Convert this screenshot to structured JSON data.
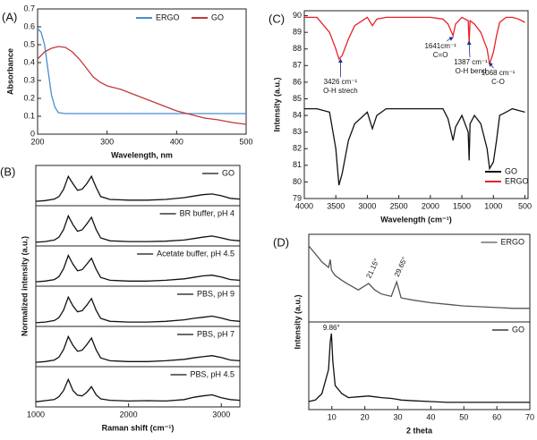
{
  "chart_data": [
    {
      "type": "line",
      "label": "(A)",
      "xlabel": "Wavelength, nm",
      "ylabel": "Absorbance",
      "x": [
        200,
        205,
        210,
        215,
        220,
        225,
        230,
        240,
        250,
        260,
        270,
        280,
        290,
        300,
        320,
        340,
        360,
        380,
        400,
        420,
        440,
        460,
        480,
        500
      ],
      "xlim": [
        200,
        500
      ],
      "xticks": [
        200,
        300,
        400,
        500
      ],
      "ylim": [
        0,
        0.7
      ],
      "yticks": [
        0,
        0.1,
        0.2,
        0.3,
        0.4,
        0.5,
        0.6,
        0.7
      ],
      "legend": "upper right",
      "series": [
        {
          "name": "ERGO",
          "color": "#4a8ed0",
          "values": [
            0.59,
            0.57,
            0.5,
            0.36,
            0.22,
            0.15,
            0.12,
            0.115,
            0.115,
            0.115,
            0.115,
            0.115,
            0.115,
            0.115,
            0.115,
            0.115,
            0.115,
            0.115,
            0.115,
            0.115,
            0.115,
            0.115,
            0.115,
            0.115
          ]
        },
        {
          "name": "GO",
          "color": "#c0393b",
          "values": [
            0.42,
            0.44,
            0.46,
            0.47,
            0.48,
            0.485,
            0.49,
            0.485,
            0.46,
            0.42,
            0.37,
            0.32,
            0.29,
            0.27,
            0.25,
            0.22,
            0.19,
            0.16,
            0.13,
            0.11,
            0.09,
            0.08,
            0.065,
            0.055
          ]
        }
      ]
    },
    {
      "type": "line",
      "label": "(B)",
      "xlabel": "Raman shift (cm⁻¹)",
      "ylabel": "Normalized intensity (a.u.)",
      "stacked_panels": true,
      "x": [
        1000,
        1100,
        1200,
        1250,
        1300,
        1350,
        1400,
        1450,
        1500,
        1550,
        1600,
        1650,
        1700,
        1800,
        2000,
        2200,
        2400,
        2600,
        2700,
        2800,
        2900,
        3000,
        3100,
        3200
      ],
      "xlim": [
        1000,
        3200
      ],
      "xticks": [
        1000,
        2000,
        3000
      ],
      "ylim": [
        0,
        1
      ],
      "series": [
        {
          "name": "GO",
          "color": "#111111",
          "values": [
            0.12,
            0.14,
            0.18,
            0.25,
            0.45,
            0.8,
            0.6,
            0.42,
            0.45,
            0.6,
            0.8,
            0.5,
            0.25,
            0.17,
            0.15,
            0.15,
            0.17,
            0.22,
            0.26,
            0.3,
            0.32,
            0.27,
            0.2,
            0.18
          ]
        },
        {
          "name": "BR buffer, pH 4",
          "color": "#111111",
          "values": [
            0.1,
            0.12,
            0.16,
            0.24,
            0.45,
            0.82,
            0.58,
            0.4,
            0.44,
            0.6,
            0.78,
            0.45,
            0.22,
            0.14,
            0.12,
            0.12,
            0.13,
            0.16,
            0.2,
            0.24,
            0.27,
            0.22,
            0.16,
            0.14
          ]
        },
        {
          "name": "Acetate buffer, pH 4.5",
          "color": "#111111",
          "values": [
            0.12,
            0.14,
            0.18,
            0.26,
            0.48,
            0.84,
            0.6,
            0.42,
            0.45,
            0.6,
            0.76,
            0.46,
            0.24,
            0.16,
            0.14,
            0.14,
            0.16,
            0.2,
            0.24,
            0.28,
            0.3,
            0.25,
            0.18,
            0.16
          ]
        },
        {
          "name": "PBS, pH 9",
          "color": "#111111",
          "values": [
            0.1,
            0.12,
            0.16,
            0.24,
            0.45,
            0.8,
            0.56,
            0.4,
            0.43,
            0.58,
            0.76,
            0.44,
            0.22,
            0.14,
            0.12,
            0.12,
            0.14,
            0.18,
            0.22,
            0.25,
            0.28,
            0.23,
            0.16,
            0.14
          ]
        },
        {
          "name": "PBS, pH 7",
          "color": "#111111",
          "values": [
            0.12,
            0.14,
            0.18,
            0.26,
            0.47,
            0.82,
            0.58,
            0.42,
            0.45,
            0.6,
            0.78,
            0.46,
            0.24,
            0.16,
            0.14,
            0.14,
            0.16,
            0.2,
            0.24,
            0.27,
            0.3,
            0.25,
            0.18,
            0.16
          ]
        },
        {
          "name": "PBS, pH 4.5",
          "color": "#111111",
          "values": [
            0.14,
            0.17,
            0.2,
            0.28,
            0.45,
            0.75,
            0.45,
            0.32,
            0.3,
            0.4,
            0.55,
            0.33,
            0.22,
            0.18,
            0.16,
            0.17,
            0.16,
            0.2,
            0.26,
            0.3,
            0.33,
            0.25,
            0.2,
            0.18
          ]
        }
      ]
    },
    {
      "type": "line",
      "label": "(C)",
      "xlabel": "Wavelength (cm⁻¹)",
      "ylabel": "Intensity (a.u.)",
      "x": [
        4000,
        3800,
        3600,
        3500,
        3450,
        3400,
        3300,
        3200,
        3000,
        2920,
        2850,
        2700,
        2400,
        2000,
        1800,
        1720,
        1640,
        1600,
        1500,
        1400,
        1385,
        1370,
        1300,
        1200,
        1100,
        1060,
        1000,
        950,
        900,
        800,
        700,
        600,
        500
      ],
      "xlim": [
        4000,
        450
      ],
      "xticks": [
        4000,
        3500,
        3000,
        2500,
        2000,
        1500,
        1000,
        500
      ],
      "ylim": [
        79,
        90.3
      ],
      "yticks": [
        79,
        80,
        81,
        82,
        83,
        84,
        85,
        86,
        87,
        88,
        89,
        90
      ],
      "legend": "lower right",
      "arrows": true,
      "series": [
        {
          "name": "GO",
          "color": "#111111",
          "values": [
            84.4,
            84.4,
            84.2,
            82,
            79.8,
            80.5,
            82.5,
            83.5,
            84.2,
            83.2,
            84,
            84.4,
            84.4,
            84.4,
            84.4,
            83.8,
            82.5,
            83.3,
            84,
            83,
            81.3,
            83.5,
            84,
            83.5,
            82,
            80.8,
            81.2,
            82.5,
            84,
            84.2,
            84.4,
            84.3,
            84.2
          ]
        },
        {
          "name": "ERGO",
          "color": "#e8202a",
          "values": [
            89.9,
            89.9,
            89,
            88,
            87.4,
            87.6,
            88.6,
            89.4,
            89.9,
            89.4,
            89.8,
            89.9,
            89.9,
            89.9,
            89.8,
            89.5,
            88.8,
            89.5,
            89.9,
            89.7,
            88.4,
            89.7,
            89.5,
            89,
            88,
            87.1,
            87.8,
            88.8,
            89.6,
            89.9,
            89.9,
            89.8,
            89.6
          ]
        }
      ],
      "annotations": [
        {
          "text": "3426 cm⁻¹",
          "note": "O-H strech",
          "x": 3426,
          "series": 1,
          "color": "#1f2a8a",
          "note_color": "#2e8b2e"
        },
        {
          "text": "1641cm⁻¹",
          "note": "C=O",
          "x": 1641,
          "series": 1,
          "color": "#1f2a8a",
          "note_color": "#2e8b2e"
        },
        {
          "text": "1387 cm⁻¹",
          "note": "O-H bend",
          "x": 1387,
          "series": 1,
          "color": "#1f2a8a",
          "note_color": "#2e8b2e"
        },
        {
          "text": "1068 cm⁻¹",
          "note": "C-O",
          "x": 1068,
          "series": 1,
          "color": "#1f2a8a",
          "note_color": "#2e8b2e"
        }
      ]
    },
    {
      "type": "line",
      "label": "(D)",
      "xlabel": "2 theta",
      "ylabel": "Intensity (a.u.)",
      "stacked_panels": true,
      "x": [
        3,
        5,
        7,
        9,
        9.5,
        9.86,
        10.3,
        11,
        13,
        15,
        18,
        21.15,
        23,
        25,
        28,
        29.65,
        31,
        35,
        40,
        45,
        50,
        55,
        60,
        65,
        70
      ],
      "xlim": [
        3,
        70
      ],
      "xticks": [
        10,
        20,
        30,
        40,
        50,
        60,
        70
      ],
      "ylim": [
        0,
        1.05
      ],
      "series": [
        {
          "name": "ERGO",
          "color": "#555555",
          "values": [
            0.95,
            0.85,
            0.75,
            0.68,
            0.78,
            0.65,
            0.62,
            0.58,
            0.52,
            0.47,
            0.4,
            0.48,
            0.4,
            0.35,
            0.32,
            0.5,
            0.3,
            0.27,
            0.24,
            0.22,
            0.2,
            0.19,
            0.18,
            0.17,
            0.17
          ]
        },
        {
          "name": "GO",
          "color": "#111111",
          "values": [
            0.1,
            0.12,
            0.2,
            0.5,
            0.85,
            0.95,
            0.6,
            0.3,
            0.2,
            0.15,
            0.16,
            0.17,
            0.16,
            0.15,
            0.14,
            0.13,
            0.12,
            0.11,
            0.1,
            0.09,
            0.09,
            0.09,
            0.09,
            0.09,
            0.09
          ]
        }
      ],
      "annotations": [
        {
          "text": "21.15°",
          "x": 21.15,
          "series": 0,
          "color": "#e8202a"
        },
        {
          "text": "29.65°",
          "x": 29.65,
          "series": 0,
          "color": "#e8202a"
        },
        {
          "text": "9.86°",
          "x": 9.86,
          "series": 1,
          "color": "#111111"
        }
      ]
    }
  ]
}
